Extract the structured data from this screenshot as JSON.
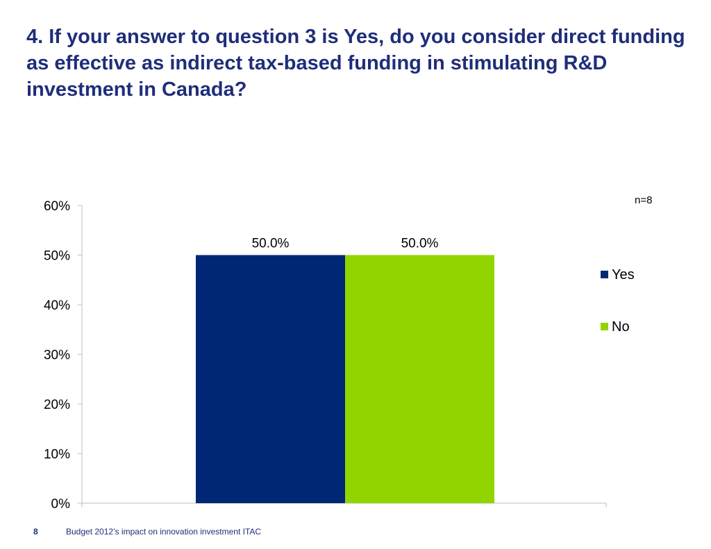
{
  "slide": {
    "title": "4. If your answer to question 3 is Yes, do you consider direct funding as effective as indirect tax-based funding in stimulating R&D investment in Canada?",
    "sample_size": "n=8",
    "page_number": "8",
    "footer": "Budget 2012’s impact on innovation investment ITAC"
  },
  "colors": {
    "title": "#1f2d7a",
    "axis": "#bfbfbf",
    "yes": "#002776",
    "no": "#92d400"
  },
  "chart_data": {
    "type": "bar",
    "title": "",
    "xlabel": "",
    "ylabel": "",
    "ylim": [
      0,
      60
    ],
    "yticks": [
      0,
      10,
      20,
      30,
      40,
      50,
      60
    ],
    "ytick_labels": [
      "0%",
      "10%",
      "20%",
      "30%",
      "40%",
      "50%",
      "60%"
    ],
    "series": [
      {
        "name": "Yes",
        "values": [
          50.0
        ],
        "label": "50.0%",
        "color": "#002776"
      },
      {
        "name": "No",
        "values": [
          50.0
        ],
        "label": "50.0%",
        "color": "#92d400"
      }
    ],
    "legend_position": "right",
    "grid": false
  }
}
